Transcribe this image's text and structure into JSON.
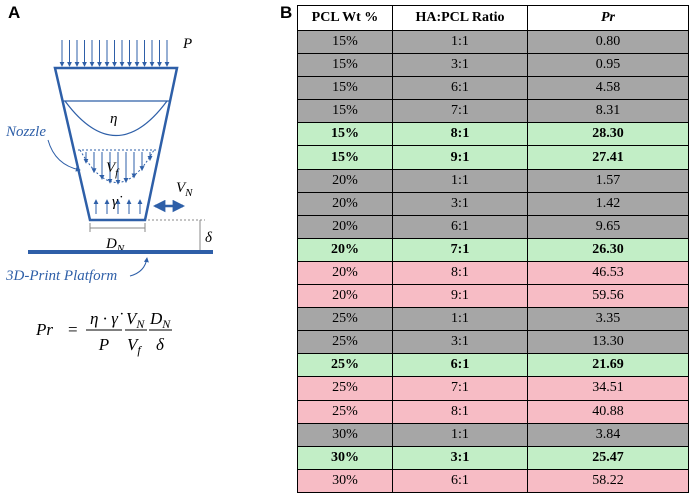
{
  "panel_a": {
    "label": "A",
    "load": "P",
    "viscosity": "η",
    "nozzle_label": "Nozzle",
    "flow_velocity": {
      "symbol": "V",
      "sub": "f"
    },
    "shear_rate": "γ̇",
    "nozzle_velocity": {
      "symbol": "V",
      "sub": "N"
    },
    "diameter": {
      "symbol": "D",
      "sub": "N"
    },
    "gap": "δ",
    "platform_label": "3D-Print Platform",
    "formula": {
      "lhs": "Pr",
      "equals": "=",
      "t1_num": "η · γ̇",
      "t1_den": "P",
      "t2_num": "V",
      "t2_num_sub": "N",
      "t2_den": "V",
      "t2_den_sub": "f",
      "t3_num": "D",
      "t3_num_sub": "N",
      "t3_den": "δ"
    }
  },
  "panel_b": {
    "label": "B",
    "table": {
      "header": [
        "PCL Wt %",
        "HA:PCL Ratio",
        "Pr"
      ],
      "rows": [
        {
          "cells": [
            "15%",
            "1:1",
            "0.80"
          ],
          "highlight": "gray"
        },
        {
          "cells": [
            "15%",
            "3:1",
            "0.95"
          ],
          "highlight": "gray"
        },
        {
          "cells": [
            "15%",
            "6:1",
            "4.58"
          ],
          "highlight": "gray"
        },
        {
          "cells": [
            "15%",
            "7:1",
            "8.31"
          ],
          "highlight": "gray"
        },
        {
          "cells": [
            "15%",
            "8:1",
            "28.30"
          ],
          "highlight": "green"
        },
        {
          "cells": [
            "15%",
            "9:1",
            "27.41"
          ],
          "highlight": "green"
        },
        {
          "cells": [
            "20%",
            "1:1",
            "1.57"
          ],
          "highlight": "gray"
        },
        {
          "cells": [
            "20%",
            "3:1",
            "1.42"
          ],
          "highlight": "gray"
        },
        {
          "cells": [
            "20%",
            "6:1",
            "9.65"
          ],
          "highlight": "gray"
        },
        {
          "cells": [
            "20%",
            "7:1",
            "26.30"
          ],
          "highlight": "green"
        },
        {
          "cells": [
            "20%",
            "8:1",
            "46.53"
          ],
          "highlight": "pink"
        },
        {
          "cells": [
            "20%",
            "9:1",
            "59.56"
          ],
          "highlight": "pink"
        },
        {
          "cells": [
            "25%",
            "1:1",
            "3.35"
          ],
          "highlight": "gray"
        },
        {
          "cells": [
            "25%",
            "3:1",
            "13.30"
          ],
          "highlight": "gray"
        },
        {
          "cells": [
            "25%",
            "6:1",
            "21.69"
          ],
          "highlight": "green"
        },
        {
          "cells": [
            "25%",
            "7:1",
            "34.51"
          ],
          "highlight": "pink"
        },
        {
          "cells": [
            "25%",
            "8:1",
            "40.88"
          ],
          "highlight": "pink"
        },
        {
          "cells": [
            "30%",
            "1:1",
            "3.84"
          ],
          "highlight": "gray"
        },
        {
          "cells": [
            "30%",
            "3:1",
            "25.47"
          ],
          "highlight": "green"
        },
        {
          "cells": [
            "30%",
            "6:1",
            "58.22"
          ],
          "highlight": "pink"
        }
      ]
    }
  }
}
